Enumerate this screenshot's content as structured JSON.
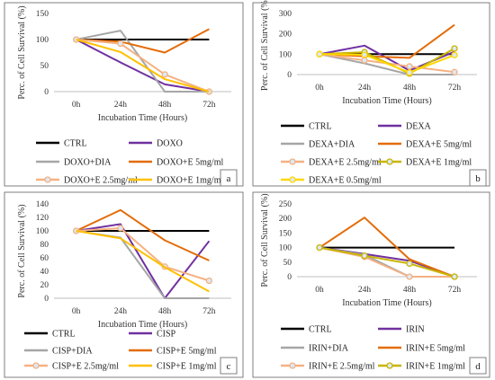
{
  "chart_data": [
    {
      "type": "line",
      "panel_label": "a",
      "categories": [
        "0h",
        "24h",
        "48h",
        "72h"
      ],
      "xlabel": "Incubation Time (Hours)",
      "ylabel": "Perc. of Cell Survival (%)",
      "ylim": [
        0,
        150
      ],
      "yticks": [
        "0",
        "50",
        "100",
        "150"
      ],
      "grid": false,
      "legend_position": "bottom",
      "series": [
        {
          "name": "CTRL",
          "color": "#000000",
          "marker": "none",
          "values": [
            100,
            100,
            100,
            100
          ]
        },
        {
          "name": "DOXO",
          "color": "#7030a0",
          "marker": "none",
          "values": [
            100,
            56,
            14,
            0
          ]
        },
        {
          "name": "DOXO+DIA",
          "color": "#a6a6a6",
          "marker": "none",
          "values": [
            100,
            117,
            0,
            0
          ]
        },
        {
          "name": "DOXO+E 5mg/ml",
          "color": "#e36c09",
          "marker": "none",
          "values": [
            100,
            96,
            75,
            120
          ]
        },
        {
          "name": "DOXO+E 2.5mg/ml",
          "color": "#f4b183",
          "marker": "circle",
          "values": [
            100,
            92,
            33,
            0
          ]
        },
        {
          "name": "DOXO+E 1mg/ml",
          "color": "#ffc000",
          "marker": "none",
          "values": [
            100,
            76,
            24,
            0
          ]
        }
      ]
    },
    {
      "type": "line",
      "panel_label": "b",
      "categories": [
        "0h",
        "24h",
        "48h",
        "72h"
      ],
      "xlabel": "Incubation Time (Hours)",
      "ylabel": "Perc. of Cell Survival (%)",
      "ylim": [
        0,
        300
      ],
      "yticks": [
        "0",
        "100",
        "200",
        "300"
      ],
      "grid": false,
      "legend_position": "bottom",
      "series": [
        {
          "name": "CTRL",
          "color": "#000000",
          "marker": "none",
          "values": [
            100,
            100,
            100,
            100
          ]
        },
        {
          "name": "DEXA",
          "color": "#7030a0",
          "marker": "none",
          "values": [
            100,
            142,
            20,
            112
          ]
        },
        {
          "name": "DEXA+DIA",
          "color": "#a6a6a6",
          "marker": "none",
          "values": [
            100,
            55,
            0,
            0
          ]
        },
        {
          "name": "DEXA+E 5mg/ml",
          "color": "#e36c09",
          "marker": "none",
          "values": [
            100,
            90,
            82,
            244
          ]
        },
        {
          "name": "DEXA+E 2.5mg/ml",
          "color": "#f4b183",
          "marker": "circle",
          "values": [
            100,
            70,
            40,
            12
          ]
        },
        {
          "name": "DEXA+E 1mg/ml",
          "color": "#c9b400",
          "marker": "circle",
          "values": [
            100,
            110,
            5,
            128
          ]
        },
        {
          "name": "DEXA+E 0.5mg/ml",
          "color": "#ffd700",
          "marker": "circle",
          "values": [
            100,
            97,
            10,
            96
          ]
        }
      ]
    },
    {
      "type": "line",
      "panel_label": "c",
      "categories": [
        "0h",
        "24h",
        "48h",
        "72h"
      ],
      "xlabel": "Incubation Time (Hours)",
      "ylabel": "Perc. of Cell Survival (%)",
      "ylim": [
        0,
        140
      ],
      "yticks": [
        "0",
        "20",
        "40",
        "60",
        "80",
        "100",
        "120",
        "140"
      ],
      "grid": false,
      "legend_position": "bottom",
      "series": [
        {
          "name": "CTRL",
          "color": "#000000",
          "marker": "none",
          "values": [
            100,
            100,
            100,
            100
          ]
        },
        {
          "name": "CISP",
          "color": "#7030a0",
          "marker": "none",
          "values": [
            100,
            110,
            0,
            85
          ]
        },
        {
          "name": "CISP+DIA",
          "color": "#a6a6a6",
          "marker": "none",
          "values": [
            100,
            90,
            0,
            0
          ]
        },
        {
          "name": "CISP+E 5mg/ml",
          "color": "#e36c09",
          "marker": "none",
          "values": [
            100,
            131,
            86,
            56
          ]
        },
        {
          "name": "CISP+E 2.5mg/ml",
          "color": "#f4b183",
          "marker": "circle",
          "values": [
            100,
            104,
            47,
            26
          ]
        },
        {
          "name": "CISP+E 1mg/ml",
          "color": "#ffc000",
          "marker": "none",
          "values": [
            100,
            89,
            46,
            10
          ]
        }
      ]
    },
    {
      "type": "line",
      "panel_label": "d",
      "categories": [
        "0h",
        "24h",
        "48h",
        "72h"
      ],
      "xlabel": "Incubation Time (Hours)",
      "ylabel": "Perc. of Cell Survival (%)",
      "ylim": [
        0,
        250
      ],
      "yticks": [
        "0",
        "50",
        "100",
        "150",
        "200",
        "250"
      ],
      "grid": false,
      "legend_position": "bottom",
      "series": [
        {
          "name": "CTRL",
          "color": "#000000",
          "marker": "none",
          "values": [
            100,
            100,
            100,
            100
          ]
        },
        {
          "name": "IRIN",
          "color": "#7030a0",
          "marker": "none",
          "values": [
            100,
            78,
            55,
            0
          ]
        },
        {
          "name": "IRIN+DIA",
          "color": "#a6a6a6",
          "marker": "none",
          "values": [
            100,
            75,
            0,
            0
          ]
        },
        {
          "name": "IRIN+E 5mg/ml",
          "color": "#e36c09",
          "marker": "none",
          "values": [
            100,
            203,
            60,
            0
          ]
        },
        {
          "name": "IRIN+E 2.5mg/ml",
          "color": "#f4b183",
          "marker": "circle",
          "values": [
            100,
            68,
            0,
            0
          ]
        },
        {
          "name": "IRIN+E 1mg/ml",
          "color": "#c9b400",
          "marker": "circle",
          "values": [
            100,
            72,
            45,
            0
          ]
        }
      ]
    }
  ]
}
